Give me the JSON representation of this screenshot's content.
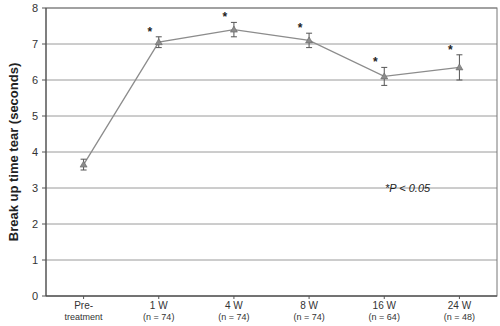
{
  "chart_data": {
    "type": "line",
    "y_label": "Break up time tear (seconds)",
    "categories": [
      "Pre-\ntreatment",
      "1 W\n(n = 74)",
      "4 W\n(n = 74)",
      "8 W\n(n = 74)",
      "16 W\n(n = 64)",
      "24 W\n(n = 48)"
    ],
    "values": [
      3.65,
      7.05,
      7.4,
      7.1,
      6.1,
      6.35
    ],
    "errors": [
      0.15,
      0.15,
      0.2,
      0.2,
      0.25,
      0.35
    ],
    "significance": [
      null,
      "*",
      "*",
      "*",
      "*",
      "*"
    ],
    "annotation": "*P < 0.05",
    "color": "#8c8c8c",
    "marker": "triangle",
    "ylim": [
      0,
      8
    ],
    "yticks": [
      0,
      1,
      2,
      3,
      4,
      5,
      6,
      7,
      8
    ],
    "grid": true
  }
}
